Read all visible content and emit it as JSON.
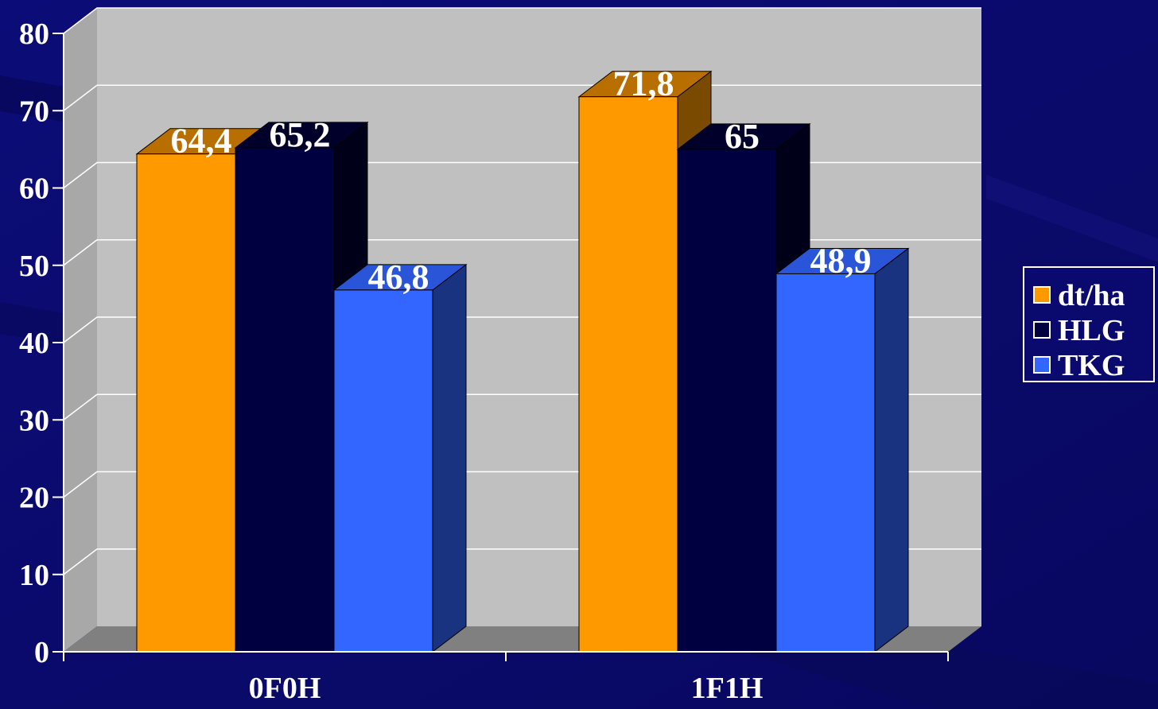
{
  "colors": {
    "background": "#0a0a6e",
    "plot_back": "#c0c0c0",
    "plot_side": "#a8a8a8",
    "floor": "#808080",
    "gridline": "#ffffff",
    "axis": "#ffffff"
  },
  "chart_data": {
    "type": "bar",
    "style": "3d-clustered-column",
    "categories": [
      "0F0H",
      "1F1H"
    ],
    "series": [
      {
        "name": "dt/ha",
        "values": [
          64.4,
          71.8
        ],
        "labels": [
          "64,4",
          "71,8"
        ],
        "color": "#ff9900",
        "top_color": "#b86f00",
        "side_color": "#7a4a00"
      },
      {
        "name": "HLG",
        "values": [
          65.2,
          65
        ],
        "labels": [
          "65,2",
          "65"
        ],
        "color": "#000040",
        "top_color": "#00002a",
        "side_color": "#000018"
      },
      {
        "name": "TKG",
        "values": [
          46.8,
          48.9
        ],
        "labels": [
          "46,8",
          "48,9"
        ],
        "color": "#3366ff",
        "top_color": "#2a55d8",
        "side_color": "#1a3380"
      }
    ],
    "ylim": [
      0,
      80
    ],
    "y_ticks": [
      "0",
      "10",
      "20",
      "30",
      "40",
      "50",
      "60",
      "70",
      "80"
    ],
    "grid": true,
    "legend_position": "right",
    "title": "",
    "xlabel": "",
    "ylabel": ""
  }
}
